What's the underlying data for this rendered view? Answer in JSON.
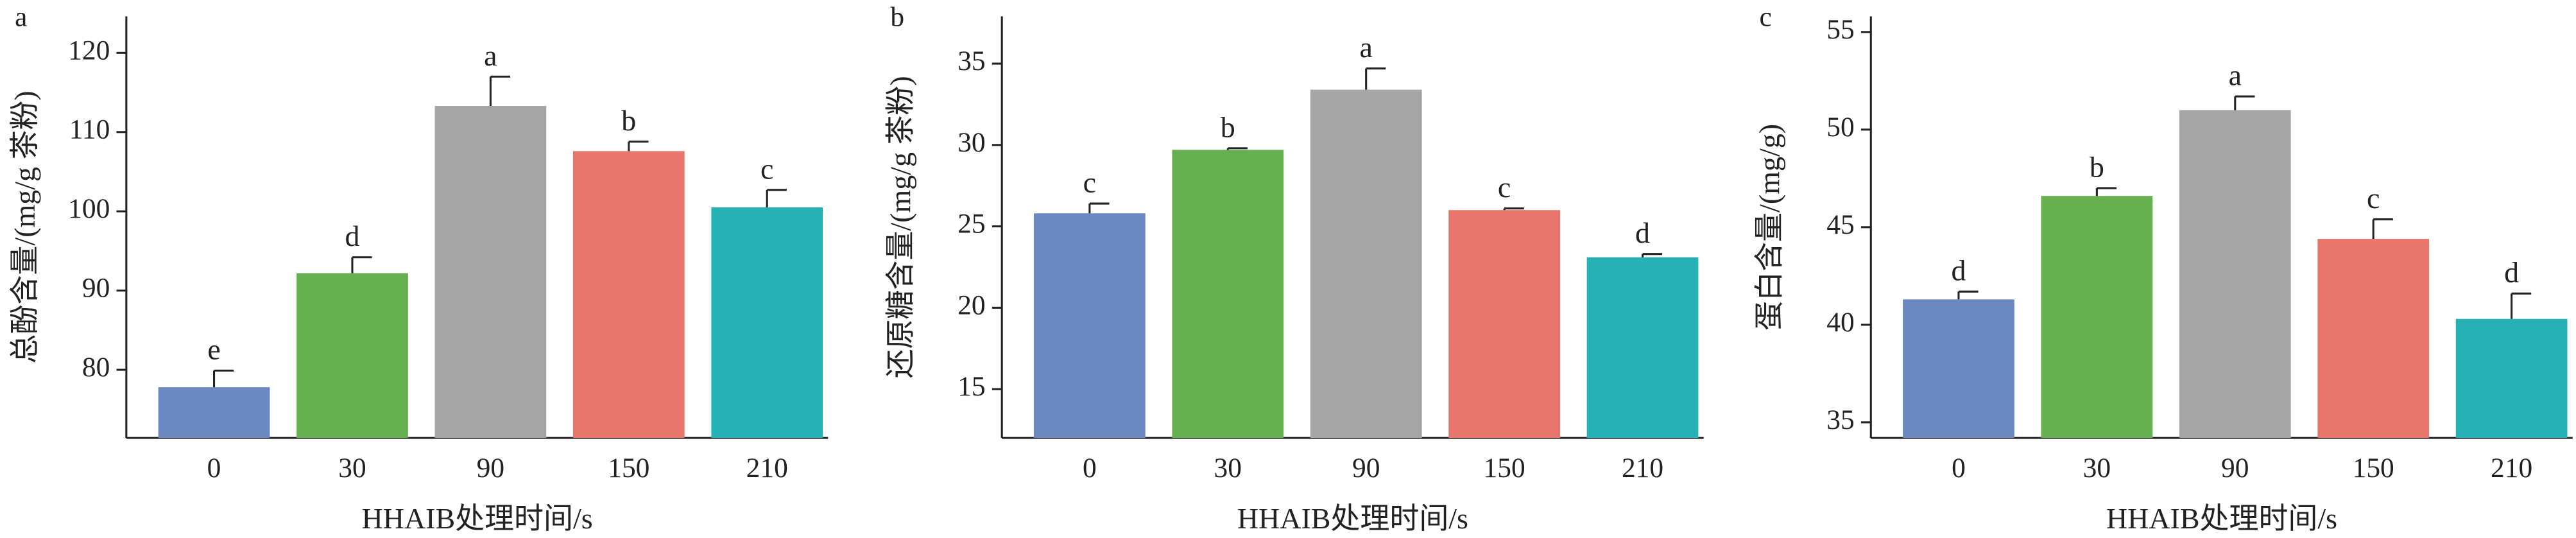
{
  "chart_data": [
    {
      "type": "bar",
      "panel": "a",
      "ylabel": "总酚含量/(mg/g 茶粉)",
      "xlabel": "HHAIB处理时间/s",
      "categories": [
        "0",
        "30",
        "90",
        "150",
        "210"
      ],
      "values": [
        77.8,
        92.2,
        113.3,
        107.6,
        100.5
      ],
      "errors": [
        2.1,
        2.0,
        3.7,
        1.2,
        2.2
      ],
      "letters": [
        "e",
        "d",
        "a",
        "b",
        "c"
      ],
      "colors": [
        "#6b88c0",
        "#67b04f",
        "#a5a5a5",
        "#e8766c",
        "#26b1b5"
      ],
      "ylim": [
        71.4,
        124.6
      ],
      "yticks": [
        80,
        90,
        100,
        110,
        120
      ]
    },
    {
      "type": "bar",
      "panel": "b",
      "ylabel": "还原糖含量/(mg/g 茶粉)",
      "xlabel": "HHAIB处理时间/s",
      "categories": [
        "0",
        "30",
        "90",
        "150",
        "210"
      ],
      "values": [
        25.8,
        29.7,
        33.4,
        26.0,
        23.1
      ],
      "errors": [
        0.6,
        0.1,
        1.3,
        0.1,
        0.2
      ],
      "letters": [
        "c",
        "b",
        "a",
        "c",
        "d"
      ],
      "colors": [
        "#6b88c0",
        "#67b04f",
        "#a5a5a5",
        "#e8766c",
        "#26b1b5"
      ],
      "ylim": [
        12,
        37.9
      ],
      "yticks": [
        15,
        20,
        25,
        30,
        35
      ]
    },
    {
      "type": "bar",
      "panel": "c",
      "ylabel": "蛋白含量/(mg/g)",
      "xlabel": "HHAIB处理时间/s",
      "categories": [
        "0",
        "30",
        "90",
        "150",
        "210"
      ],
      "values": [
        41.3,
        46.6,
        51.0,
        44.4,
        40.3
      ],
      "errors": [
        0.4,
        0.4,
        0.7,
        1.0,
        1.3
      ],
      "letters": [
        "d",
        "b",
        "a",
        "c",
        "d"
      ],
      "colors": [
        "#6b88c0",
        "#67b04f",
        "#a5a5a5",
        "#e8766c",
        "#26b1b5"
      ],
      "ylim": [
        34.2,
        55.8
      ],
      "yticks": [
        35,
        40,
        45,
        50,
        55
      ]
    }
  ]
}
